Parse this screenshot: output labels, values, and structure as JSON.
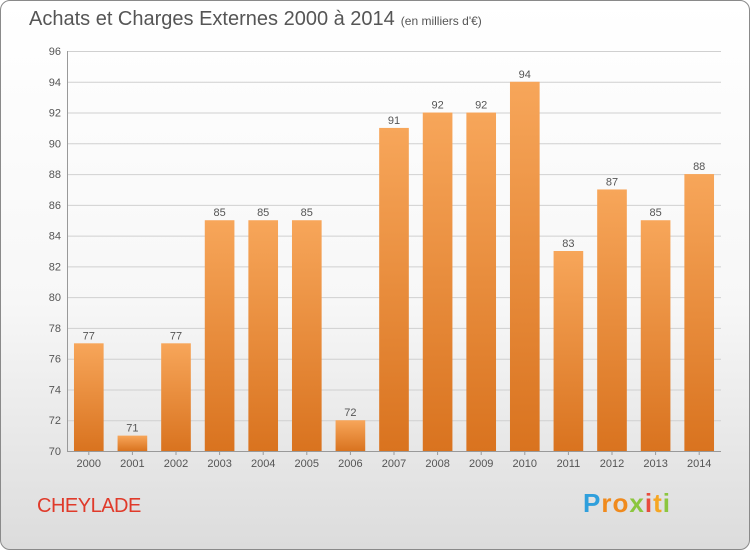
{
  "title": "Achats et Charges Externes 2000 à 2014",
  "unit": "(en milliers d'€)",
  "commune": "CHEYLADE",
  "logo": {
    "letters": [
      "P",
      "r",
      "o",
      "x",
      "i",
      "t",
      "i"
    ],
    "colors": [
      "#2f9fdc",
      "#f08a1d",
      "#f08a1d",
      "#8cc63f",
      "#e84c3d",
      "#f6a623",
      "#8cc63f"
    ]
  },
  "colors": {
    "bar_top": "#f7a65a",
    "bar_bottom": "#d9731f",
    "grid": "#d0d0d0",
    "commune": "#e03a2a"
  },
  "chart_data": {
    "type": "bar",
    "title": "Achats et Charges Externes 2000 à 2014",
    "subtitle": "(en milliers d'€)",
    "categories": [
      "2000",
      "2001",
      "2002",
      "2003",
      "2004",
      "2005",
      "2006",
      "2007",
      "2008",
      "2009",
      "2010",
      "2011",
      "2012",
      "2013",
      "2014"
    ],
    "values": [
      77,
      71,
      77,
      85,
      85,
      85,
      72,
      91,
      92,
      92,
      94,
      83,
      87,
      85,
      88
    ],
    "ylim": [
      70,
      96
    ],
    "yticks": [
      70,
      72,
      74,
      76,
      78,
      80,
      82,
      84,
      86,
      88,
      90,
      92,
      94,
      96
    ],
    "grid": true,
    "xlabel": "",
    "ylabel": ""
  }
}
